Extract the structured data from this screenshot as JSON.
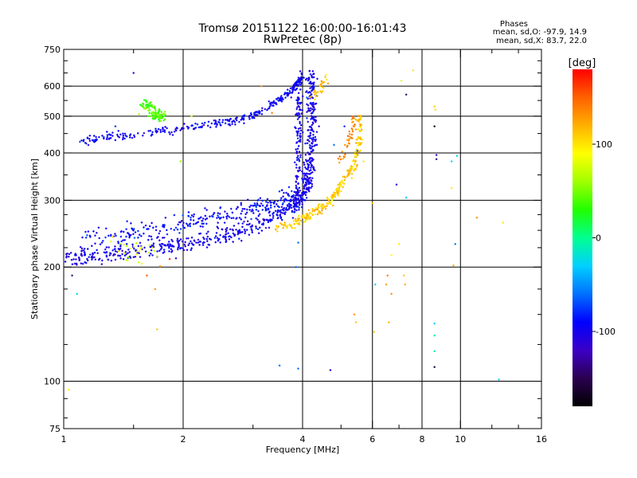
{
  "chart_data": {
    "type": "scatter",
    "title": "Tromsø 20151122 16:00:00-16:01:43",
    "subtitle": "RwPretec (8p)",
    "xlabel": "Frequency [MHz]",
    "ylabel": "Stationary phase Virtual Height [km]",
    "x_scale": "log",
    "y_scale": "log",
    "xlim": [
      1,
      16
    ],
    "ylim": [
      75,
      750
    ],
    "x_ticks": [
      1,
      2,
      4,
      6,
      8,
      10,
      16
    ],
    "y_ticks": [
      75,
      100,
      200,
      300,
      400,
      500,
      600,
      750
    ],
    "grid_x": [
      2,
      4,
      6,
      8,
      10
    ],
    "grid_y": [
      100,
      200,
      300,
      400,
      500,
      600
    ],
    "phase_info": {
      "heading": "Phases",
      "line_o": "mean, sd,O: -97.9, 14.9",
      "line_x": "mean, sd,X:  83.7, 22.0"
    },
    "colorbar": {
      "label": "[deg]",
      "min": -180,
      "max": 180,
      "ticks": [
        100,
        0,
        -100
      ],
      "colors": [
        "#000000",
        "#2a0050",
        "#3b00c8",
        "#0000ff",
        "#0070ff",
        "#00d0ff",
        "#00ff90",
        "#20ff00",
        "#a0ff00",
        "#ffff00",
        "#ffb000",
        "#ff6000",
        "#ff0000"
      ]
    },
    "traces": [
      {
        "name": "o-lower-blue",
        "phase": -100,
        "pts": [
          [
            1.0,
            210
          ],
          [
            1.1,
            213
          ],
          [
            1.25,
            215
          ],
          [
            1.4,
            218
          ],
          [
            1.6,
            222
          ],
          [
            1.8,
            226
          ],
          [
            2.0,
            230
          ],
          [
            2.3,
            236
          ],
          [
            2.6,
            244
          ],
          [
            2.9,
            252
          ],
          [
            3.2,
            262
          ],
          [
            3.5,
            275
          ],
          [
            3.8,
            292
          ],
          [
            4.0,
            310
          ],
          [
            4.1,
            330
          ],
          [
            4.15,
            355
          ],
          [
            4.18,
            380
          ],
          [
            4.2,
            420
          ],
          [
            4.22,
            470
          ],
          [
            4.22,
            530
          ],
          [
            4.2,
            600
          ],
          [
            4.18,
            640
          ]
        ],
        "spread": 0.05,
        "count": 700
      },
      {
        "name": "o-upper-blue",
        "phase": -95,
        "pts": [
          [
            1.1,
            430
          ],
          [
            1.3,
            440
          ],
          [
            1.6,
            450
          ],
          [
            2.0,
            465
          ],
          [
            2.4,
            478
          ],
          [
            2.8,
            492
          ],
          [
            3.1,
            510
          ],
          [
            3.4,
            540
          ],
          [
            3.7,
            575
          ],
          [
            3.9,
            610
          ],
          [
            4.0,
            640
          ]
        ],
        "spread": 0.025,
        "count": 320
      },
      {
        "name": "o-diffuse",
        "phase": -90,
        "pts": [
          [
            1.1,
            235
          ],
          [
            1.4,
            245
          ],
          [
            1.7,
            252
          ],
          [
            2.0,
            262
          ],
          [
            2.3,
            270
          ],
          [
            2.7,
            278
          ],
          [
            3.0,
            283
          ],
          [
            3.3,
            290
          ],
          [
            3.6,
            300
          ],
          [
            3.9,
            305
          ]
        ],
        "spread": 0.07,
        "count": 300
      },
      {
        "name": "o-column-4MHz",
        "phase": -100,
        "pts": [
          [
            3.85,
            300
          ],
          [
            3.88,
            360
          ],
          [
            3.9,
            420
          ],
          [
            3.92,
            480
          ],
          [
            3.92,
            540
          ],
          [
            3.9,
            600
          ]
        ],
        "spread": 0.03,
        "count": 120
      },
      {
        "name": "x-yellow",
        "phase": 110,
        "pts": [
          [
            3.4,
            252
          ],
          [
            3.8,
            262
          ],
          [
            4.1,
            272
          ],
          [
            4.4,
            285
          ],
          [
            4.7,
            300
          ],
          [
            5.0,
            325
          ],
          [
            5.3,
            360
          ],
          [
            5.5,
            400
          ],
          [
            5.6,
            460
          ],
          [
            5.55,
            500
          ]
        ],
        "spread": 0.03,
        "count": 260
      },
      {
        "name": "x-orange",
        "phase": 135,
        "pts": [
          [
            5.0,
            380
          ],
          [
            5.2,
            420
          ],
          [
            5.35,
            470
          ],
          [
            5.45,
            500
          ]
        ],
        "spread": 0.03,
        "count": 40
      },
      {
        "name": "x-upper",
        "phase": 115,
        "pts": [
          [
            4.2,
            560
          ],
          [
            4.4,
            590
          ],
          [
            4.6,
            630
          ]
        ],
        "spread": 0.03,
        "count": 30
      },
      {
        "name": "green-cluster",
        "phase": 40,
        "pts": [
          [
            1.55,
            525
          ],
          [
            1.62,
            540
          ],
          [
            1.7,
            515
          ],
          [
            1.78,
            500
          ],
          [
            1.65,
            505
          ]
        ],
        "spread": 0.035,
        "count": 110
      },
      {
        "name": "mixed-left",
        "phase": 80,
        "pts": [
          [
            1.3,
            240
          ],
          [
            1.5,
            222
          ],
          [
            1.7,
            215
          ]
        ],
        "spread": 0.08,
        "count": 25
      }
    ],
    "scatter_points": [
      [
        1.05,
        190,
        -140
      ],
      [
        1.08,
        170,
        -30
      ],
      [
        1.03,
        95,
        100
      ],
      [
        1.5,
        650,
        -120
      ],
      [
        1.62,
        190,
        150
      ],
      [
        1.7,
        175,
        130
      ],
      [
        1.72,
        137,
        110
      ],
      [
        1.75,
        201,
        130
      ],
      [
        1.85,
        210,
        170
      ],
      [
        1.97,
        380,
        60
      ],
      [
        3.5,
        110,
        -60
      ],
      [
        3.85,
        200,
        -60
      ],
      [
        3.9,
        108,
        -60
      ],
      [
        4.7,
        107,
        -110
      ],
      [
        5.4,
        150,
        130
      ],
      [
        5.45,
        143,
        110
      ],
      [
        5.7,
        380,
        100
      ],
      [
        6.05,
        135,
        110
      ],
      [
        6.1,
        180,
        -30
      ],
      [
        6.0,
        295,
        120
      ],
      [
        6.5,
        180,
        130
      ],
      [
        6.55,
        190,
        140
      ],
      [
        6.6,
        143,
        120
      ],
      [
        6.7,
        170,
        130
      ],
      [
        6.7,
        215,
        90
      ],
      [
        6.9,
        330,
        -110
      ],
      [
        7.0,
        230,
        100
      ],
      [
        7.2,
        190,
        110
      ],
      [
        7.25,
        180,
        120
      ],
      [
        7.3,
        305,
        -30
      ],
      [
        7.3,
        570,
        -140
      ],
      [
        7.1,
        620,
        80
      ],
      [
        7.6,
        660,
        100
      ],
      [
        8.6,
        530,
        110
      ],
      [
        8.6,
        470,
        -170
      ],
      [
        8.65,
        520,
        100
      ],
      [
        8.7,
        395,
        -120
      ],
      [
        8.7,
        385,
        -140
      ],
      [
        8.6,
        142,
        -30
      ],
      [
        8.6,
        132,
        -10
      ],
      [
        8.6,
        120,
        -10
      ],
      [
        8.6,
        109,
        -160
      ],
      [
        9.5,
        380,
        -30
      ],
      [
        9.5,
        323,
        100
      ],
      [
        9.6,
        202,
        120
      ],
      [
        9.7,
        230,
        -60
      ],
      [
        9.8,
        393,
        -30
      ],
      [
        11.0,
        270,
        130
      ],
      [
        12.5,
        101,
        -30
      ],
      [
        12.8,
        262,
        100
      ],
      [
        3.15,
        600,
        130
      ],
      [
        3.35,
        510,
        140
      ],
      [
        4.1,
        560,
        -60
      ],
      [
        4.4,
        470,
        -110
      ],
      [
        4.8,
        420,
        -60
      ],
      [
        5.1,
        470,
        -80
      ],
      [
        5.5,
        405,
        -60
      ],
      [
        2.1,
        500,
        80
      ],
      [
        1.35,
        470,
        -80
      ],
      [
        3.9,
        232,
        -60
      ]
    ]
  }
}
